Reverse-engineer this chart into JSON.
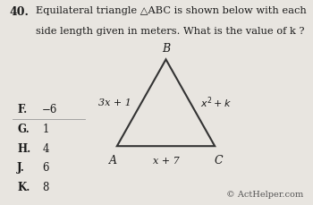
{
  "question_number": "40.",
  "question_text_line1": "Equilateral triangle △ABC is shown below with each",
  "question_text_line2": "side length given in meters. What is the value of k ?",
  "triangle_vertices": {
    "A": [
      0.0,
      0.0
    ],
    "B": [
      0.5,
      0.866
    ],
    "C": [
      1.0,
      0.0
    ]
  },
  "choices": [
    {
      "letter": "F.",
      "value": "−6"
    },
    {
      "letter": "G.",
      "value": "1"
    },
    {
      "letter": "H.",
      "value": "4"
    },
    {
      "letter": "J.",
      "value": "6"
    },
    {
      "letter": "K.",
      "value": "8"
    }
  ],
  "copyright_text": "© ActHelper.com",
  "bg_color": "#e8e5e0",
  "text_color": "#1a1a1a",
  "triangle_color": "#333333",
  "triangle_lw": 1.5
}
